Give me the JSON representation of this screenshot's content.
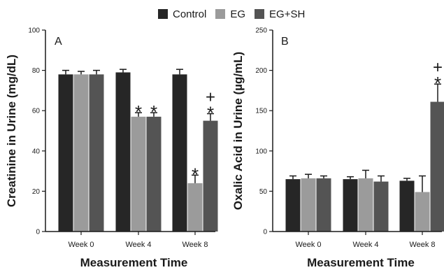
{
  "legend": [
    {
      "name": "Control",
      "color": "#262626"
    },
    {
      "name": "EG",
      "color": "#9b9b9b"
    },
    {
      "name": "EG+SH",
      "color": "#545454"
    }
  ],
  "chart_data": [
    {
      "type": "bar",
      "panel_label": "A",
      "categories": [
        "Week 0",
        "Week 4",
        "Week 8"
      ],
      "series": [
        {
          "name": "Control",
          "values": [
            78,
            79,
            78
          ],
          "errors": [
            2,
            1.5,
            2.5
          ]
        },
        {
          "name": "EG",
          "values": [
            78,
            57,
            24
          ],
          "errors": [
            1.5,
            2,
            4
          ]
        },
        {
          "name": "EG+SH",
          "values": [
            78,
            57,
            55
          ],
          "errors": [
            2,
            2,
            3.5
          ]
        }
      ],
      "annotations": [
        {
          "category": 1,
          "series": 1,
          "text": "*"
        },
        {
          "category": 1,
          "series": 2,
          "text": "*"
        },
        {
          "category": 2,
          "series": 1,
          "text": "*"
        },
        {
          "category": 2,
          "series": 2,
          "text": "*"
        },
        {
          "category": 2,
          "series": 2,
          "text": "+"
        }
      ],
      "xlabel": "Measurement Time",
      "ylabel": "Creatinine in Urine (mg/dL)",
      "ylim": [
        0,
        100
      ],
      "yticks": [
        0,
        20,
        40,
        60,
        80,
        100
      ],
      "grid": false
    },
    {
      "type": "bar",
      "panel_label": "B",
      "categories": [
        "Week 0",
        "Week 4",
        "Week 8"
      ],
      "series": [
        {
          "name": "Control",
          "values": [
            65,
            65,
            63
          ],
          "errors": [
            4,
            3,
            3
          ]
        },
        {
          "name": "EG",
          "values": [
            66,
            66,
            49
          ],
          "errors": [
            5,
            10,
            20
          ]
        },
        {
          "name": "EG+SH",
          "values": [
            66,
            62,
            161
          ],
          "errors": [
            3,
            7,
            22
          ]
        }
      ],
      "annotations": [
        {
          "category": 2,
          "series": 2,
          "text": "*"
        },
        {
          "category": 2,
          "series": 2,
          "text": "+"
        }
      ],
      "xlabel": "Measurement Time",
      "ylabel": "Oxalic Acid in Urine (µg/mL)",
      "ylim": [
        0,
        250
      ],
      "yticks": [
        0,
        50,
        100,
        150,
        200,
        250
      ],
      "grid": false
    }
  ]
}
